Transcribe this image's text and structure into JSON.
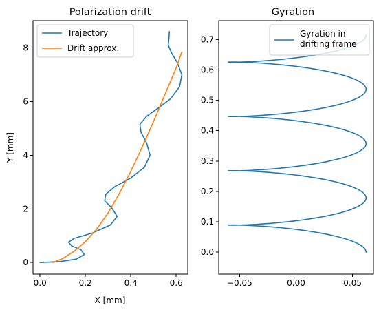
{
  "colors": {
    "trajectory": "#1f77b4",
    "drift": "#ff7f0e",
    "gyration": "#1f77b4"
  },
  "chart_data": [
    {
      "type": "line",
      "title": "Polarization drift",
      "xlabel": "X [mm]",
      "ylabel": "Y [mm]",
      "xlim": [
        -0.031,
        0.651
      ],
      "ylim": [
        -0.43,
        9.01
      ],
      "xticks": [
        0.0,
        0.2,
        0.4,
        0.6
      ],
      "xtick_labels": [
        "0.0",
        "0.2",
        "0.4",
        "0.6"
      ],
      "yticks": [
        0,
        2,
        4,
        6,
        8
      ],
      "ytick_labels": [
        "0",
        "2",
        "4",
        "6",
        "8"
      ],
      "legend": {
        "placement": "upper-left",
        "entries": [
          "Trajectory",
          "Drift approx."
        ]
      },
      "grid": false,
      "series": [
        {
          "name": "Trajectory",
          "color": "trajectory",
          "points": [
            [
              0.0,
              0.0
            ],
            [
              0.09,
              0.04
            ],
            [
              0.16,
              0.13
            ],
            [
              0.195,
              0.3
            ],
            [
              0.18,
              0.48
            ],
            [
              0.14,
              0.62
            ],
            [
              0.125,
              0.76
            ],
            [
              0.15,
              0.9
            ],
            [
              0.23,
              1.1
            ],
            [
              0.31,
              1.4
            ],
            [
              0.34,
              1.72
            ],
            [
              0.315,
              2.05
            ],
            [
              0.285,
              2.3
            ],
            [
              0.29,
              2.55
            ],
            [
              0.33,
              2.83
            ],
            [
              0.4,
              3.15
            ],
            [
              0.46,
              3.55
            ],
            [
              0.485,
              4.0
            ],
            [
              0.47,
              4.45
            ],
            [
              0.445,
              4.85
            ],
            [
              0.44,
              5.15
            ],
            [
              0.47,
              5.45
            ],
            [
              0.52,
              5.75
            ],
            [
              0.575,
              6.1
            ],
            [
              0.615,
              6.55
            ],
            [
              0.625,
              7.0
            ],
            [
              0.605,
              7.45
            ],
            [
              0.58,
              7.8
            ],
            [
              0.565,
              8.1
            ],
            [
              0.568,
              8.35
            ],
            [
              0.57,
              8.6
            ]
          ]
        },
        {
          "name": "Drift approx.",
          "color": "drift",
          "points": [
            [
              0.055,
              0.0
            ],
            [
              0.1,
              0.15
            ],
            [
              0.15,
              0.42
            ],
            [
              0.2,
              0.78
            ],
            [
              0.25,
              1.25
            ],
            [
              0.3,
              1.85
            ],
            [
              0.35,
              2.58
            ],
            [
              0.4,
              3.4
            ],
            [
              0.45,
              4.3
            ],
            [
              0.5,
              5.25
            ],
            [
              0.55,
              6.25
            ],
            [
              0.6,
              7.25
            ],
            [
              0.625,
              7.85
            ]
          ]
        }
      ]
    },
    {
      "type": "line",
      "title": "Gyration",
      "xlabel": "",
      "ylabel": "",
      "xlim": [
        -0.0685,
        0.0685
      ],
      "ylim": [
        -0.072,
        0.762
      ],
      "xticks": [
        -0.05,
        0.0,
        0.05
      ],
      "xtick_labels": [
        "−0.05",
        "0.00",
        "0.05"
      ],
      "yticks": [
        0.0,
        0.1,
        0.2,
        0.3,
        0.4,
        0.5,
        0.6,
        0.7
      ],
      "ytick_labels": [
        "0.0",
        "0.1",
        "0.2",
        "0.3",
        "0.4",
        "0.5",
        "0.6",
        "0.7"
      ],
      "legend": {
        "placement": "upper-right",
        "entries": [
          "Gyration in\ndrifting frame"
        ]
      },
      "grid": false,
      "series": [
        {
          "name": "Gyration in\ndrifting frame",
          "color": "gyration",
          "helix": {
            "center_x": 0.0,
            "amplitude": 0.062,
            "x_offset": -0.03,
            "y_amplitude": 0.03,
            "y_start": 0.0,
            "y_end": 0.715,
            "turns": 4,
            "phase_start": 3.1416
          }
        }
      ]
    }
  ]
}
